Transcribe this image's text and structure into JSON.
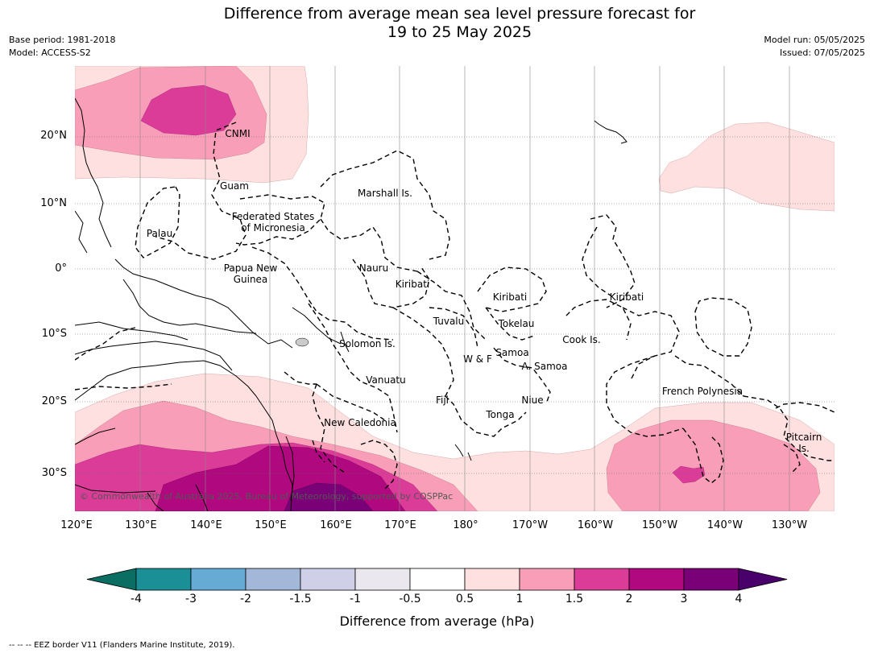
{
  "title": {
    "line1": "Difference from average mean sea level pressure forecast for",
    "line2": "19 to 25 May 2025"
  },
  "meta": {
    "base_period": "Base period: 1981-2018",
    "model": "Model: ACCESS-S2",
    "model_run": "Model run: 05/05/2025",
    "issued": "Issued: 07/05/2025"
  },
  "map": {
    "lat_ticks": [
      "20°N",
      "10°N",
      "0°",
      "10°S",
      "20°S",
      "30°S"
    ],
    "lon_ticks": [
      "120°E",
      "130°E",
      "140°E",
      "150°E",
      "160°E",
      "170°E",
      "180°",
      "170°W",
      "160°W",
      "150°W",
      "140°W",
      "130°W"
    ],
    "regions": {
      "cnmi": "CNMI",
      "guam": "Guam",
      "marshall": "Marshall Is.",
      "fsm_1": "Federated States",
      "fsm_2": "of Micronesia",
      "palau": "Palau",
      "png_1": "Papua New",
      "png_2": "Guinea",
      "nauru": "Nauru",
      "kiribati_w": "Kiribati",
      "kiribati_c": "Kiribati",
      "kiribati_e": "Kiribati",
      "tuvalu": "Tuvalu",
      "tokelau": "Tokelau",
      "cook": "Cook Is.",
      "solomon": "Solomon Is.",
      "samoa": "Samoa",
      "wf": "W & F",
      "asamoa": "A. Samoa",
      "vanuatu": "Vanuatu",
      "fiji": "Fiji",
      "niue": "Niue",
      "tonga": "Tonga",
      "frpoly": "French Polynesia",
      "newcal": "New Caledonia",
      "pitcairn_1": "Pitcairn",
      "pitcairn_2": "Is."
    },
    "copyright": "© Commonwealth of Australia 2025, Bureau of Meteorology, supported by COSPPac"
  },
  "colorbar": {
    "label": "Difference from average (hPa)",
    "ticks": [
      "-4",
      "-3",
      "-2",
      "-1.5",
      "-1",
      "-0.5",
      "0.5",
      "1",
      "1.5",
      "2",
      "3",
      "4"
    ],
    "colors": [
      "#0a6e63",
      "#1a9096",
      "#66abd4",
      "#a3b8d8",
      "#cfd0e8",
      "#ebe7ee",
      "#ffffff",
      "#fde0df",
      "#f89eb8",
      "#db3c98",
      "#b0087e",
      "#7a0077",
      "#4a006a"
    ]
  },
  "footnote": "--  --  -- EEZ border V11 (Flanders Marine Institute, 2019)."
}
